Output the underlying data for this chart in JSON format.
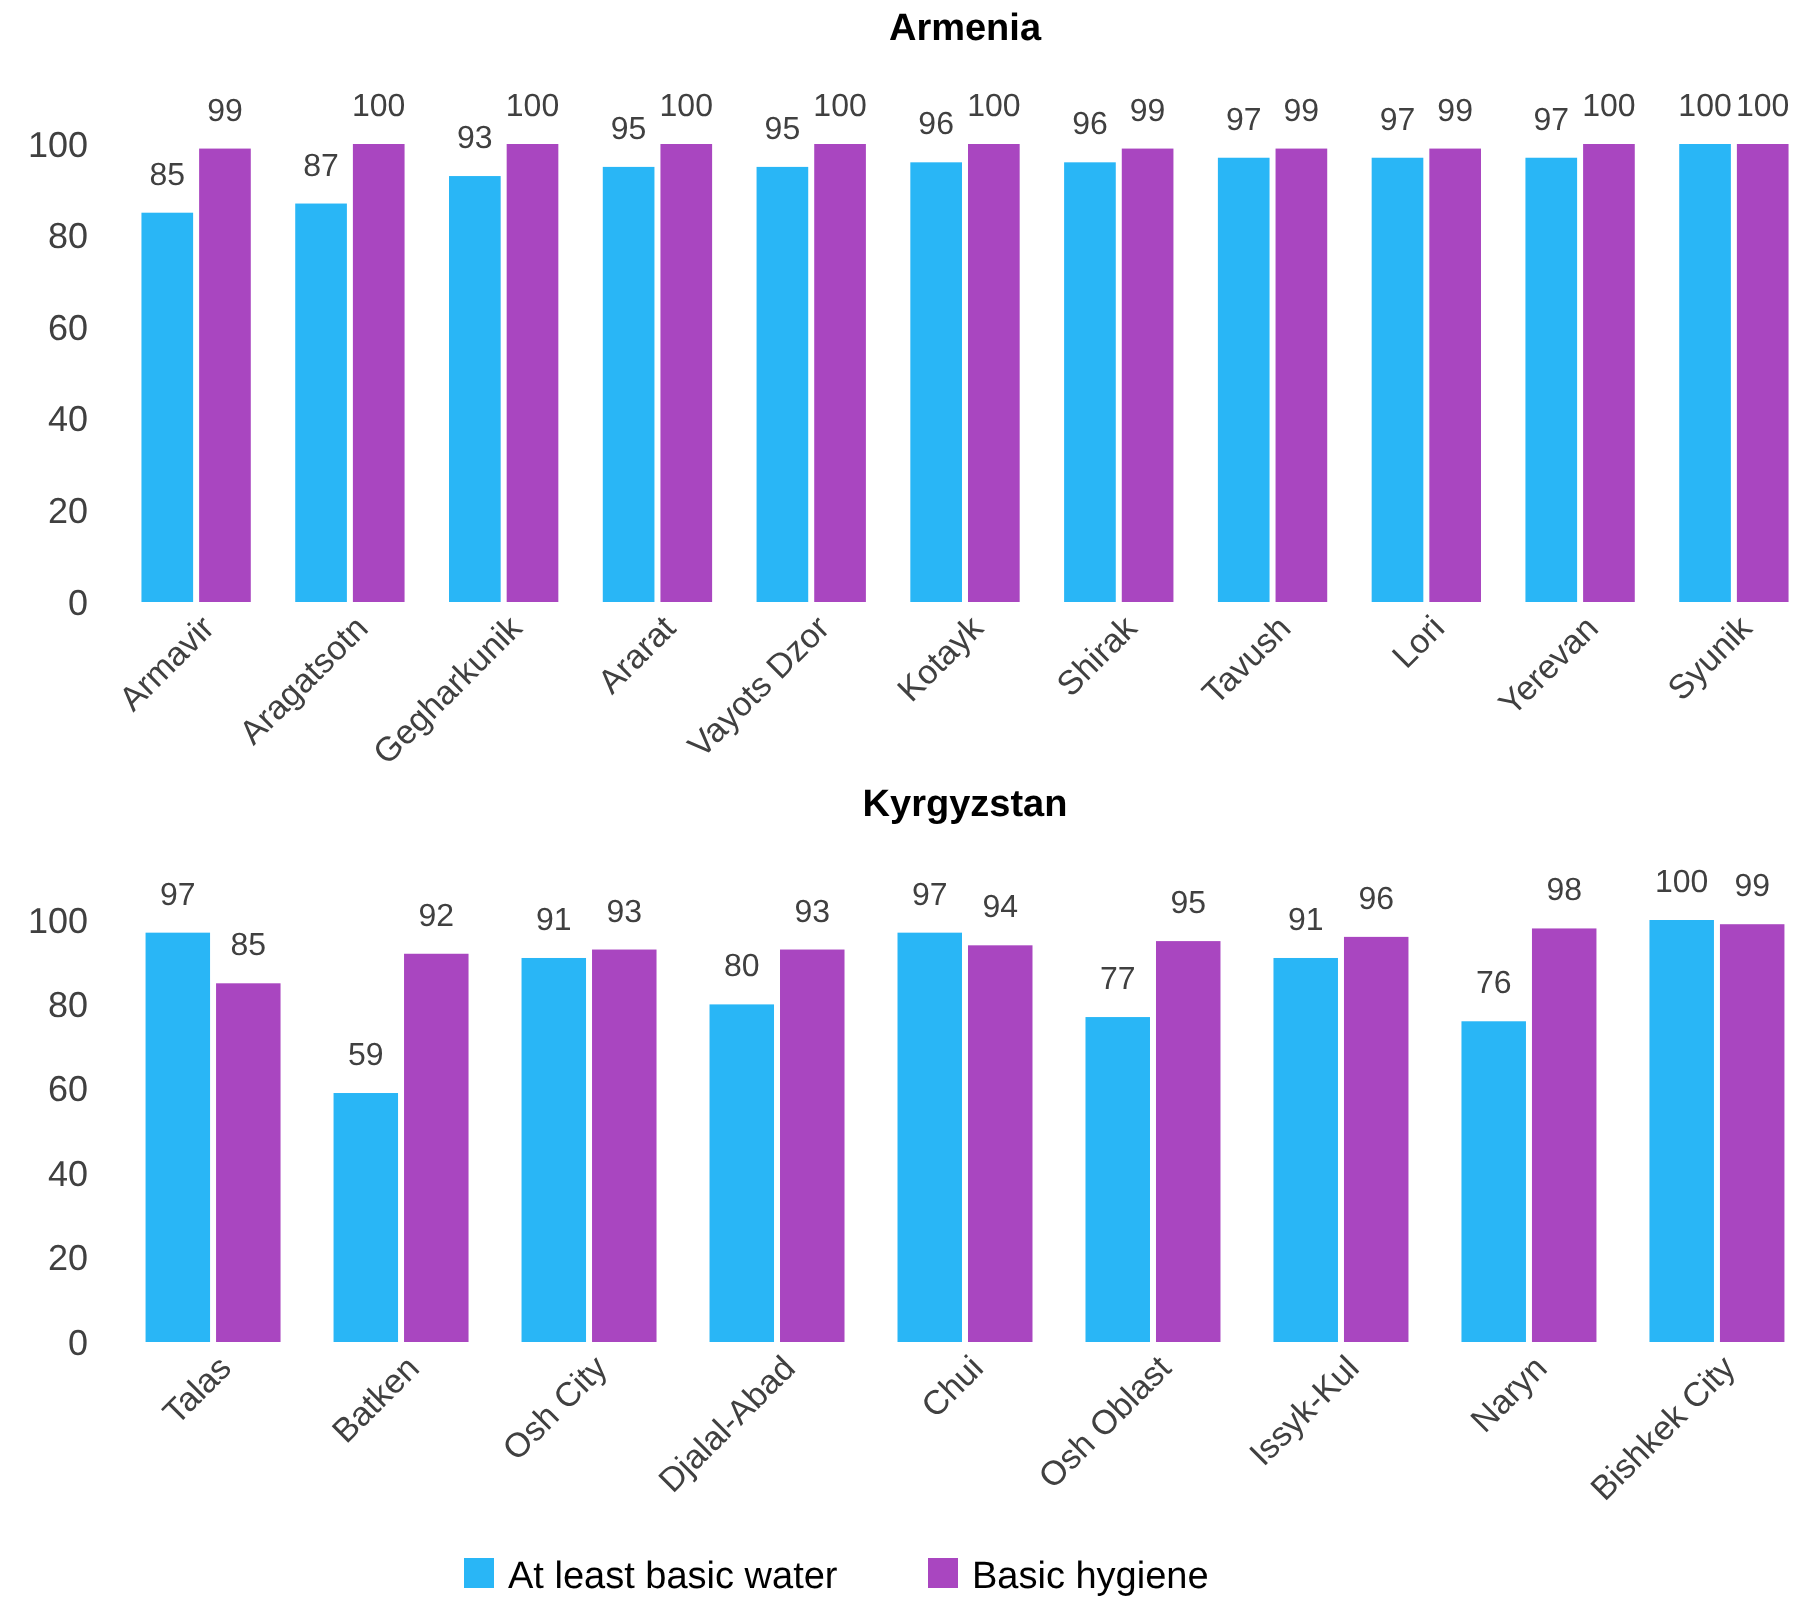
{
  "chart_data": [
    {
      "type": "bar",
      "title": "Armenia",
      "categories": [
        "Armavir",
        "Aragatsotn",
        "Gegharkunik",
        "Ararat",
        "Vayots Dzor",
        "Kotayk",
        "Shirak",
        "Tavush",
        "Lori",
        "Yerevan",
        "Syunik"
      ],
      "series": [
        {
          "color": "#29b6f6",
          "values": [
            85,
            87,
            93,
            95,
            95,
            96,
            96,
            97,
            97,
            97,
            100
          ]
        },
        {
          "color": "#a946c0",
          "values": [
            99,
            100,
            100,
            100,
            100,
            100,
            99,
            99,
            99,
            100,
            100
          ]
        }
      ],
      "ylim": [
        0,
        100
      ],
      "yticks": [
        0,
        20,
        40,
        60,
        80,
        100
      ],
      "data_labels": true,
      "grid": false,
      "legend": false
    },
    {
      "type": "bar",
      "title": "Kyrgyzstan",
      "categories": [
        "Talas",
        "Batken",
        "Osh City",
        "Djalal-Abad",
        "Chui",
        "Osh Oblast",
        "Issyk-Kul",
        "Naryn",
        "Bishkek City"
      ],
      "series": [
        {
          "name": "At least basic water",
          "color": "#29b6f6",
          "values": [
            97,
            59,
            91,
            80,
            97,
            77,
            91,
            76,
            100
          ]
        },
        {
          "name": "Basic hygiene",
          "color": "#a946c0",
          "values": [
            85,
            92,
            93,
            93,
            94,
            95,
            96,
            98,
            99
          ]
        }
      ],
      "ylim": [
        0,
        100
      ],
      "yticks": [
        0,
        20,
        40,
        60,
        80,
        100
      ],
      "data_labels": true,
      "grid": false,
      "legend": "bottom"
    }
  ]
}
